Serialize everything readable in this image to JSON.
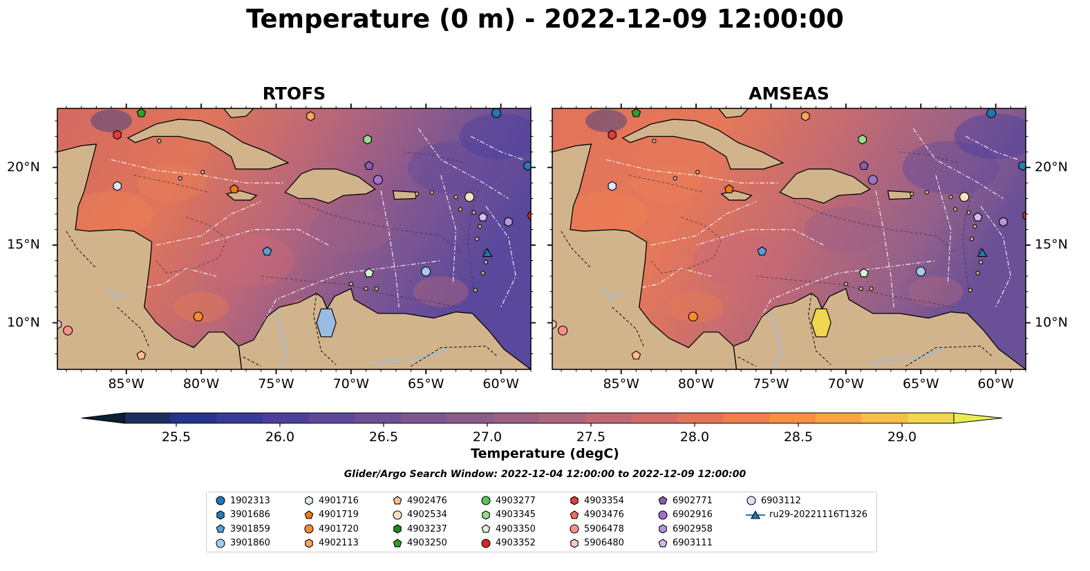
{
  "title": "Temperature (0 m) - 2022-12-09 12:00:00",
  "panels": [
    {
      "title": "RTOFS",
      "variant": "rtofs"
    },
    {
      "title": "AMSEAS",
      "variant": "amseas"
    }
  ],
  "axes": {
    "lon_ticks": [
      "85°W",
      "80°W",
      "75°W",
      "70°W",
      "65°W",
      "60°W"
    ],
    "lat_ticks": [
      "20°N",
      "15°N",
      "10°N"
    ]
  },
  "colorbar": {
    "label": "Temperature (degC)",
    "min": 25.5,
    "max": 29.0,
    "ticks": [
      "25.5",
      "26.0",
      "26.5",
      "27.0",
      "27.5",
      "28.0",
      "28.5",
      "29.0"
    ],
    "colors": [
      "#0d1f31",
      "#1b2f5f",
      "#25348f",
      "#37399c",
      "#4b3f9e",
      "#5e479a",
      "#6e4f95",
      "#7d5690",
      "#8c5c8a",
      "#9c6083",
      "#ad657b",
      "#bf6872",
      "#d16d66",
      "#e27359",
      "#ef7f4c",
      "#f78f45",
      "#fba545",
      "#f9be4a",
      "#f2d54e",
      "#e8ed57"
    ]
  },
  "search_window": "Glider/Argo Search Window: 2022-12-04 12:00:00 to 2022-12-09 12:00:00",
  "legend": [
    {
      "label": "1902313",
      "marker": "circle",
      "color": "#1f77b4"
    },
    {
      "label": "3901686",
      "marker": "hexagon",
      "color": "#2b7bba"
    },
    {
      "label": "3901859",
      "marker": "pentagon",
      "color": "#5aa0d8"
    },
    {
      "label": "3901860",
      "marker": "circle",
      "color": "#a6cbec"
    },
    {
      "label": "4901716",
      "marker": "hexagon",
      "color": "#dde9f7"
    },
    {
      "label": "4901719",
      "marker": "pentagon",
      "color": "#f07a10"
    },
    {
      "label": "4901720",
      "marker": "circle",
      "color": "#f78c2e"
    },
    {
      "label": "4902113",
      "marker": "hexagon",
      "color": "#f9a55c"
    },
    {
      "label": "4902476",
      "marker": "pentagon",
      "color": "#fcc08a"
    },
    {
      "label": "4902534",
      "marker": "circle",
      "color": "#fde0c4"
    },
    {
      "label": "4903237",
      "marker": "hexagon",
      "color": "#1a8a1a"
    },
    {
      "label": "4903250",
      "marker": "pentagon",
      "color": "#2ca02c"
    },
    {
      "label": "4903277",
      "marker": "circle",
      "color": "#5bc45b"
    },
    {
      "label": "4903345",
      "marker": "hexagon",
      "color": "#98df8a"
    },
    {
      "label": "4903350",
      "marker": "pentagon",
      "color": "#d4f5cc"
    },
    {
      "label": "4903352",
      "marker": "circle",
      "color": "#d62728"
    },
    {
      "label": "4903354",
      "marker": "hexagon",
      "color": "#e23c3c"
    },
    {
      "label": "4903476",
      "marker": "pentagon",
      "color": "#f06a6a"
    },
    {
      "label": "5906478",
      "marker": "circle",
      "color": "#f7938f"
    },
    {
      "label": "5906480",
      "marker": "hexagon",
      "color": "#fbc9c4"
    },
    {
      "label": "6902771",
      "marker": "pentagon",
      "color": "#8a5cb8"
    },
    {
      "label": "6902916",
      "marker": "circle",
      "color": "#9d73c9"
    },
    {
      "label": "6902958",
      "marker": "hexagon",
      "color": "#b798dc"
    },
    {
      "label": "6903111",
      "marker": "pentagon",
      "color": "#d4bced"
    },
    {
      "label": "6903112",
      "marker": "circle",
      "color": "#ead8f8"
    },
    {
      "label": "ru29-20221116T1326",
      "marker": "triangle-line",
      "color": "#1f77b4"
    }
  ],
  "markers": [
    {
      "id": "1902313",
      "lon": -60.3,
      "lat": 23.5
    },
    {
      "id": "3901686",
      "lon": -58.2,
      "lat": 20.1
    },
    {
      "id": "3901859",
      "lon": -75.6,
      "lat": 14.6
    },
    {
      "id": "3901860",
      "lon": -65.0,
      "lat": 13.3
    },
    {
      "id": "4901716",
      "lon": -85.6,
      "lat": 18.8
    },
    {
      "id": "4901719",
      "lon": -77.8,
      "lat": 18.6
    },
    {
      "id": "4901720",
      "lon": -80.2,
      "lat": 10.4
    },
    {
      "id": "4902113",
      "lon": -72.7,
      "lat": 23.3
    },
    {
      "id": "4902476",
      "lon": -84.0,
      "lat": 7.9
    },
    {
      "id": "4902534",
      "lon": -62.1,
      "lat": 18.1
    },
    {
      "id": "4903237",
      "lon": -68.9,
      "lat": 21.8
    },
    {
      "id": "4903250",
      "lon": -84.0,
      "lat": 23.5
    },
    {
      "id": "4903345",
      "lon": -68.9,
      "lat": 21.8
    },
    {
      "id": "4903350",
      "lon": -68.8,
      "lat": 13.2
    },
    {
      "id": "4903352",
      "lon": -57.9,
      "lat": 16.9
    },
    {
      "id": "4903354",
      "lon": -85.6,
      "lat": 22.1
    },
    {
      "id": "5906478",
      "lon": -88.9,
      "lat": 9.5
    },
    {
      "id": "5906480",
      "lon": -89.6,
      "lat": 9.9
    },
    {
      "id": "6902771",
      "lon": -68.8,
      "lat": 20.1
    },
    {
      "id": "6902916",
      "lon": -68.2,
      "lat": 19.2
    },
    {
      "id": "6902958",
      "lon": -59.5,
      "lat": 16.5
    },
    {
      "id": "6903111",
      "lon": -61.2,
      "lat": 16.8
    },
    {
      "id": "ru29-20221116T1326",
      "lon": -60.9,
      "lat": 14.5
    }
  ]
}
